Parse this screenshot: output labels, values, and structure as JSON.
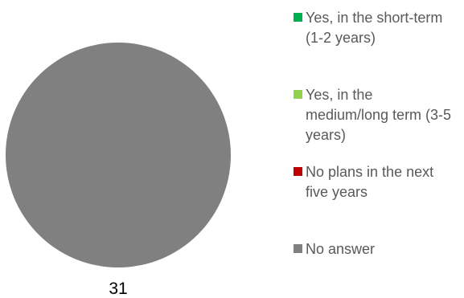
{
  "chart_data": {
    "type": "pie",
    "categories": [
      "Yes, in the short-term (1-2 years)",
      "Yes, in the medium/long term (3-5 years)",
      "No plans in the next five years",
      "No answer"
    ],
    "values": [
      0,
      0,
      0,
      31
    ],
    "colors": [
      "#00b050",
      "#92d050",
      "#c00000",
      "#808080"
    ],
    "data_labels": [
      "",
      "",
      "",
      "31"
    ],
    "legend_position": "right"
  },
  "legend": {
    "items": [
      {
        "label": "Yes, in the short-term (1-2 years)",
        "color": "#00b050"
      },
      {
        "label": "Yes, in the medium/long term (3-5 years)",
        "color": "#92d050"
      },
      {
        "label": "No plans in the next five years",
        "color": "#c00000"
      },
      {
        "label": "No answer",
        "color": "#808080"
      }
    ]
  }
}
